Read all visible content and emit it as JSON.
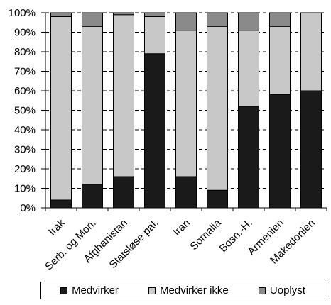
{
  "colors": {
    "medvirker": "#1a1a1a",
    "medvirker_ikke": "#c8c8c8",
    "uoplyst": "#8a8a8a"
  },
  "chart_data": {
    "type": "bar",
    "stacked": true,
    "categories": [
      "Irak",
      "Serb. og Mon.",
      "Afghanistan",
      "Statsløse pal.",
      "Iran",
      "Somalia",
      "Bosn.-H.",
      "Armenien",
      "Makedonien"
    ],
    "series": [
      {
        "name": "Medvirker",
        "values": [
          4,
          12,
          16,
          79,
          16,
          9,
          52,
          58,
          60
        ]
      },
      {
        "name": "Medvirker ikke",
        "values": [
          94,
          81,
          83,
          19,
          75,
          84,
          39,
          35,
          40
        ]
      },
      {
        "name": "Uoplyst",
        "values": [
          2,
          7,
          1,
          2,
          9,
          7,
          9,
          7,
          0
        ]
      }
    ],
    "yticks": [
      "0%",
      "10%",
      "20%",
      "30%",
      "40%",
      "50%",
      "60%",
      "70%",
      "80%",
      "90%",
      "100%"
    ],
    "ylim": [
      0,
      100
    ],
    "grid": true,
    "legend_position": "bottom"
  }
}
